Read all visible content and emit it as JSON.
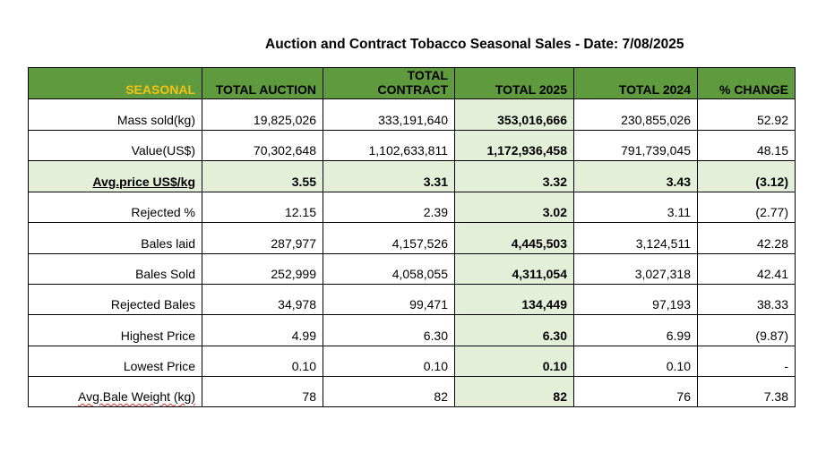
{
  "title": "Auction and Contract Tobacco Seasonal Sales - Date: 7/08/2025",
  "headers": [
    "SEASONAL",
    "TOTAL AUCTION",
    "TOTAL\nCONTRACT",
    "TOTAL 2025",
    "TOTAL 2024",
    "% CHANGE"
  ],
  "rows": [
    {
      "label": "Mass sold(kg)",
      "auction": "19,825,026",
      "contract": "333,191,640",
      "total2025": "353,016,666",
      "total2024": "230,855,026",
      "change": "52.92"
    },
    {
      "label": "Value(US$)",
      "auction": "70,302,648",
      "contract": "1,102,633,811",
      "total2025": "1,172,936,458",
      "total2024": "791,739,045",
      "change": "48.15"
    },
    {
      "label": "Avg.price US$/kg",
      "auction": "3.55",
      "contract": "3.31",
      "total2025": "3.32",
      "total2024": "3.43",
      "change": "(3.12)"
    },
    {
      "label": "Rejected %",
      "auction": "12.15",
      "contract": "2.39",
      "total2025": "3.02",
      "total2024": "3.11",
      "change": "(2.77)"
    },
    {
      "label": "Bales laid",
      "auction": "287,977",
      "contract": "4,157,526",
      "total2025": "4,445,503",
      "total2024": "3,124,511",
      "change": "42.28"
    },
    {
      "label": "Bales Sold",
      "auction": "252,999",
      "contract": "4,058,055",
      "total2025": "4,311,054",
      "total2024": "3,027,318",
      "change": "42.41"
    },
    {
      "label": "Rejected Bales",
      "auction": "34,978",
      "contract": "99,471",
      "total2025": "134,449",
      "total2024": "97,193",
      "change": "38.33"
    },
    {
      "label": "Highest Price",
      "auction": "4.99",
      "contract": "6.30",
      "total2025": "6.30",
      "total2024": "6.99",
      "change": "(9.87)"
    },
    {
      "label": "Lowest Price",
      "auction": "0.10",
      "contract": "0.10",
      "total2025": "0.10",
      "total2024": "0.10",
      "change": "-"
    },
    {
      "label": "Avg.Bale Weight (kg)",
      "auction": "78",
      "contract": "82",
      "total2025": "82",
      "total2024": "76",
      "change": "7.38"
    }
  ],
  "colors": {
    "header_bg": "#5f9a3e",
    "header_first_text": "#f2c313",
    "highlight_bg": "#e3efd9"
  }
}
